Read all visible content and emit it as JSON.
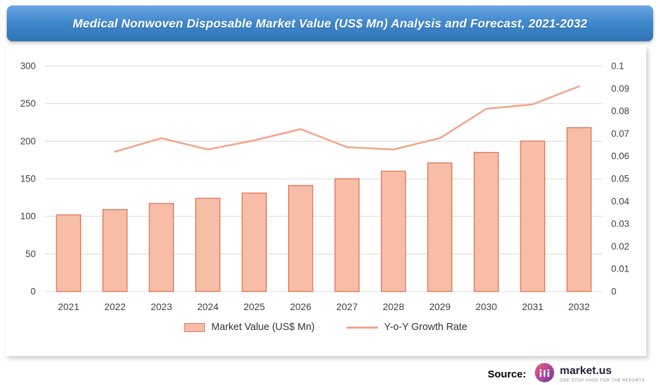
{
  "title": "Medical Nonwoven Disposable Market Value (US$ Mn) Analysis and Forecast, 2021-2032",
  "chart_data": {
    "type": "bar",
    "combo": "bar+line",
    "title": "Medical Nonwoven Disposable Market Value (US$ Mn) Analysis and Forecast, 2021-2032",
    "categories": [
      "2021",
      "2022",
      "2023",
      "2024",
      "2025",
      "2026",
      "2027",
      "2028",
      "2029",
      "2030",
      "2031",
      "2032"
    ],
    "series": [
      {
        "name": "Market Value (US$ Mn)",
        "type": "bar",
        "axis": "left",
        "values": [
          102,
          109,
          117,
          124,
          131,
          141,
          150,
          160,
          171,
          185,
          200,
          218
        ],
        "fill": "#f7bda7",
        "stroke": "#e0795a"
      },
      {
        "name": "Y-o-Y Growth Rate",
        "type": "line",
        "axis": "right",
        "values": [
          null,
          0.062,
          0.068,
          0.063,
          0.067,
          0.072,
          0.064,
          0.063,
          0.068,
          0.081,
          0.083,
          0.091
        ],
        "stroke": "#f2a58a"
      }
    ],
    "left_axis": {
      "min": 0,
      "max": 300,
      "step": 50
    },
    "right_axis": {
      "min": 0,
      "max": 0.1,
      "step": 0.01
    },
    "grid": true,
    "legend_position": "bottom"
  },
  "colors": {
    "title_bg_top": "#6ba6e3",
    "title_bg_bottom": "#2e75b6",
    "grid": "#d9d9d9",
    "axis_text": "#3f3f3f",
    "bar_fill": "#f7bda7",
    "bar_stroke": "#e0795a",
    "line_stroke": "#f2a58a"
  },
  "source": {
    "label": "Source:",
    "brand": "market.us",
    "tagline": "ONE STOP SHOP FOR THE REPORTS"
  }
}
